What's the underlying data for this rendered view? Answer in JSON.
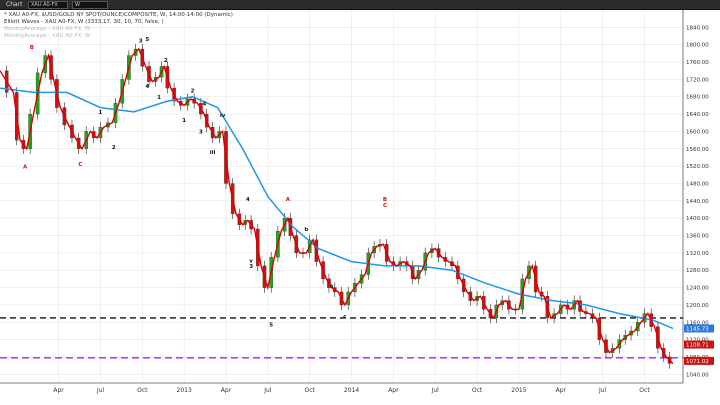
{
  "window": {
    "title": "Chart",
    "symbol": "XAU A0-FX",
    "interval": "W"
  },
  "legend": {
    "line1": "* XAU A0-FX, $USD/GOLD NY SPOT(OUNCE)COMPOSITE, W, 14:00-14:00 (Dynamic)",
    "line2": "Elliott Waves - XAU A0-FX, W (3333,17, 30, 10, 70, false, )",
    "line3": "MovingAverage - XAU A0-FX, W",
    "line4": "MovingAverage - XAU A0-FX, W"
  },
  "colors": {
    "up": "#1aa81a",
    "down": "#d11111",
    "ma_fast": "#dd0000",
    "ma_slow": "#2196e8",
    "support": "#111111",
    "target": "#b000ff",
    "label_last": "#2a7ae2",
    "label_ma": "#d11111"
  },
  "chart_data": {
    "type": "line",
    "title": "",
    "xlabel": "",
    "ylabel": "",
    "ylim": [
      1020,
      1880
    ],
    "y_ticks": [
      1040,
      1080,
      1120,
      1160,
      1200,
      1240,
      1280,
      1320,
      1360,
      1400,
      1440,
      1480,
      1520,
      1560,
      1600,
      1640,
      1680,
      1720,
      1760,
      1800,
      1840
    ],
    "x_ticks": [
      {
        "label": "Apr",
        "x": 2012.25
      },
      {
        "label": "Jul",
        "x": 2012.5
      },
      {
        "label": "Oct",
        "x": 2012.75
      },
      {
        "label": "2013",
        "x": 2013.0
      },
      {
        "label": "Apr",
        "x": 2013.25
      },
      {
        "label": "Jul",
        "x": 2013.5
      },
      {
        "label": "Oct",
        "x": 2013.75
      },
      {
        "label": "2014",
        "x": 2014.0
      },
      {
        "label": "Apr",
        "x": 2014.25
      },
      {
        "label": "Jul",
        "x": 2014.5
      },
      {
        "label": "Oct",
        "x": 2014.75
      },
      {
        "label": "2015",
        "x": 2015.0
      },
      {
        "label": "Apr",
        "x": 2015.25
      },
      {
        "label": "Jul",
        "x": 2015.5
      },
      {
        "label": "Oct",
        "x": 2015.75
      }
    ],
    "xlim": [
      2011.9,
      2015.98
    ],
    "price_path": [
      [
        2011.9,
        1740
      ],
      [
        2011.98,
        1690
      ],
      [
        2012.02,
        1580
      ],
      [
        2012.06,
        1560
      ],
      [
        2012.1,
        1640
      ],
      [
        2012.15,
        1735
      ],
      [
        2012.19,
        1775
      ],
      [
        2012.22,
        1720
      ],
      [
        2012.26,
        1655
      ],
      [
        2012.31,
        1615
      ],
      [
        2012.35,
        1585
      ],
      [
        2012.39,
        1560
      ],
      [
        2012.44,
        1600
      ],
      [
        2012.48,
        1585
      ],
      [
        2012.52,
        1610
      ],
      [
        2012.57,
        1620
      ],
      [
        2012.61,
        1665
      ],
      [
        2012.65,
        1720
      ],
      [
        2012.69,
        1775
      ],
      [
        2012.73,
        1790
      ],
      [
        2012.77,
        1750
      ],
      [
        2012.81,
        1715
      ],
      [
        2012.85,
        1725
      ],
      [
        2012.88,
        1750
      ],
      [
        2012.92,
        1700
      ],
      [
        2012.96,
        1670
      ],
      [
        2013.0,
        1660
      ],
      [
        2013.04,
        1675
      ],
      [
        2013.08,
        1665
      ],
      [
        2013.12,
        1640
      ],
      [
        2013.15,
        1610
      ],
      [
        2013.19,
        1585
      ],
      [
        2013.23,
        1600
      ],
      [
        2013.27,
        1480
      ],
      [
        2013.31,
        1410
      ],
      [
        2013.35,
        1385
      ],
      [
        2013.38,
        1395
      ],
      [
        2013.42,
        1375
      ],
      [
        2013.46,
        1290
      ],
      [
        2013.5,
        1240
      ],
      [
        2013.54,
        1310
      ],
      [
        2013.58,
        1370
      ],
      [
        2013.62,
        1400
      ],
      [
        2013.65,
        1360
      ],
      [
        2013.69,
        1320
      ],
      [
        2013.73,
        1320
      ],
      [
        2013.77,
        1350
      ],
      [
        2013.81,
        1300
      ],
      [
        2013.85,
        1260
      ],
      [
        2013.88,
        1240
      ],
      [
        2013.92,
        1230
      ],
      [
        2013.96,
        1200
      ],
      [
        2014.0,
        1230
      ],
      [
        2014.04,
        1250
      ],
      [
        2014.08,
        1270
      ],
      [
        2014.12,
        1320
      ],
      [
        2014.15,
        1335
      ],
      [
        2014.19,
        1340
      ],
      [
        2014.23,
        1300
      ],
      [
        2014.27,
        1290
      ],
      [
        2014.31,
        1300
      ],
      [
        2014.35,
        1290
      ],
      [
        2014.38,
        1260
      ],
      [
        2014.42,
        1280
      ],
      [
        2014.46,
        1320
      ],
      [
        2014.5,
        1330
      ],
      [
        2014.54,
        1310
      ],
      [
        2014.58,
        1300
      ],
      [
        2014.62,
        1290
      ],
      [
        2014.65,
        1260
      ],
      [
        2014.69,
        1230
      ],
      [
        2014.73,
        1210
      ],
      [
        2014.77,
        1220
      ],
      [
        2014.81,
        1190
      ],
      [
        2014.85,
        1170
      ],
      [
        2014.88,
        1200
      ],
      [
        2014.92,
        1210
      ],
      [
        2014.96,
        1190
      ],
      [
        2015.0,
        1190
      ],
      [
        2015.04,
        1260
      ],
      [
        2015.08,
        1290
      ],
      [
        2015.12,
        1230
      ],
      [
        2015.15,
        1220
      ],
      [
        2015.19,
        1170
      ],
      [
        2015.23,
        1180
      ],
      [
        2015.27,
        1200
      ],
      [
        2015.31,
        1190
      ],
      [
        2015.35,
        1210
      ],
      [
        2015.38,
        1185
      ],
      [
        2015.42,
        1180
      ],
      [
        2015.46,
        1170
      ],
      [
        2015.5,
        1120
      ],
      [
        2015.54,
        1090
      ],
      [
        2015.58,
        1100
      ],
      [
        2015.62,
        1120
      ],
      [
        2015.65,
        1130
      ],
      [
        2015.69,
        1140
      ],
      [
        2015.73,
        1160
      ],
      [
        2015.77,
        1180
      ],
      [
        2015.81,
        1150
      ],
      [
        2015.85,
        1100
      ],
      [
        2015.88,
        1080
      ],
      [
        2015.92,
        1065
      ]
    ],
    "ma_slow": [
      [
        2011.9,
        1700
      ],
      [
        2012.1,
        1690
      ],
      [
        2012.3,
        1690
      ],
      [
        2012.5,
        1655
      ],
      [
        2012.7,
        1645
      ],
      [
        2012.9,
        1670
      ],
      [
        2013.05,
        1680
      ],
      [
        2013.2,
        1655
      ],
      [
        2013.35,
        1560
      ],
      [
        2013.5,
        1450
      ],
      [
        2013.65,
        1380
      ],
      [
        2013.8,
        1330
      ],
      [
        2014.0,
        1300
      ],
      [
        2014.2,
        1290
      ],
      [
        2014.4,
        1290
      ],
      [
        2014.6,
        1280
      ],
      [
        2014.8,
        1250
      ],
      [
        2015.0,
        1225
      ],
      [
        2015.2,
        1210
      ],
      [
        2015.4,
        1200
      ],
      [
        2015.6,
        1180
      ],
      [
        2015.8,
        1165
      ],
      [
        2015.92,
        1146
      ]
    ],
    "support_level": 1170,
    "target_level": 1078,
    "last_price": 1071.02,
    "series": [
      {
        "values": [
          1145.73
        ]
      },
      {
        "values": [
          1108.71
        ]
      }
    ],
    "wave_labels": [
      {
        "text": "A",
        "x": 2012.05,
        "y": 1515
      },
      {
        "text": "B",
        "x": 2012.09,
        "y": 1790
      },
      {
        "text": "C",
        "x": 2012.38,
        "y": 1520
      },
      {
        "text": "1",
        "x": 2012.5,
        "y": 1640
      },
      {
        "text": "2",
        "x": 2012.58,
        "y": 1560
      },
      {
        "text": "3",
        "x": 2012.74,
        "y": 1805
      },
      {
        "text": "4",
        "x": 2012.78,
        "y": 1700
      },
      {
        "text": "5",
        "x": 2012.78,
        "y": 1808
      },
      {
        "text": "1",
        "x": 2012.85,
        "y": 1675
      },
      {
        "text": "2",
        "x": 2012.89,
        "y": 1760
      },
      {
        "text": "1",
        "x": 2013.0,
        "y": 1622
      },
      {
        "text": "2",
        "x": 2013.05,
        "y": 1690
      },
      {
        "text": "3",
        "x": 2013.1,
        "y": 1595
      },
      {
        "text": "4",
        "x": 2013.12,
        "y": 1660
      },
      {
        "text": "iv",
        "x": 2013.23,
        "y": 1633
      },
      {
        "text": "iii",
        "x": 2013.17,
        "y": 1548
      },
      {
        "text": "4",
        "x": 2013.38,
        "y": 1440
      },
      {
        "text": "v",
        "x": 2013.4,
        "y": 1298
      },
      {
        "text": "3",
        "x": 2013.4,
        "y": 1285
      },
      {
        "text": "5",
        "x": 2013.52,
        "y": 1150
      },
      {
        "text": "A",
        "x": 2013.62,
        "y": 1440
      },
      {
        "text": "b",
        "x": 2013.73,
        "y": 1370
      },
      {
        "text": "c",
        "x": 2013.96,
        "y": 1170
      },
      {
        "text": "a",
        "x": 2013.88,
        "y": 1240
      },
      {
        "text": "B",
        "x": 2014.2,
        "y": 1440
      },
      {
        "text": "C",
        "x": 2014.2,
        "y": 1426
      }
    ]
  }
}
